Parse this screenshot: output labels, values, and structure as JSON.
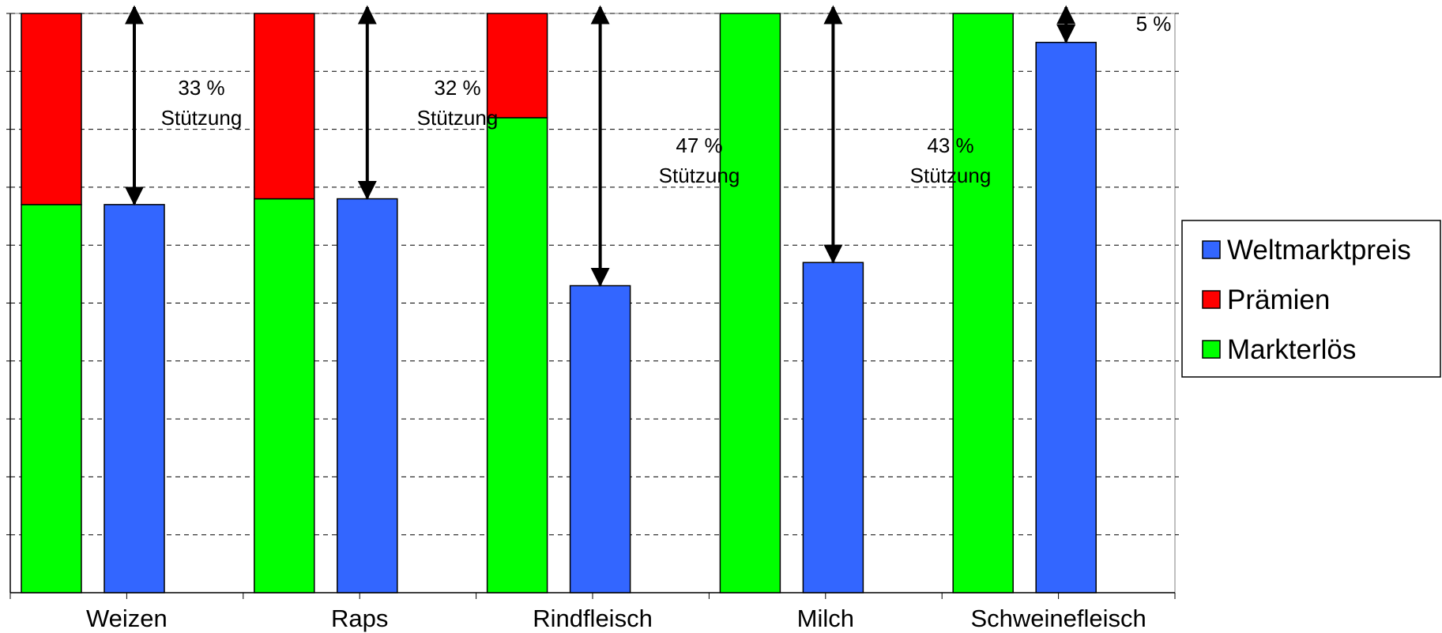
{
  "chart_data": {
    "type": "bar",
    "categories": [
      "Weizen",
      "Raps",
      "Rindfleisch",
      "Milch",
      "Schweinefleisch"
    ],
    "stacked_series": [
      {
        "name": "Markterlös",
        "color": "#00ff00",
        "values": [
          67,
          68,
          82,
          100,
          100
        ]
      },
      {
        "name": "Prämien",
        "color": "#ff0000",
        "values": [
          33,
          32,
          18,
          0,
          0
        ]
      }
    ],
    "series": [
      {
        "name": "Weltmarktpreis",
        "color": "#3366ff",
        "values": [
          67,
          68,
          53,
          57,
          95
        ]
      }
    ],
    "ylim": [
      0,
      100
    ],
    "grid": true,
    "legend_position": "right",
    "annotations": [
      {
        "category": 0,
        "pct": "33 %",
        "word": "Stützung"
      },
      {
        "category": 1,
        "pct": "32 %",
        "word": "Stützung"
      },
      {
        "category": 2,
        "pct": "47 %",
        "word": "Stützung"
      },
      {
        "category": 3,
        "pct": "43 %",
        "word": "Stützung"
      },
      {
        "category": 4,
        "pct": "5 %",
        "word": ""
      }
    ],
    "legend": [
      "Weltmarktpreis",
      "Prämien",
      "Markterlös"
    ]
  }
}
